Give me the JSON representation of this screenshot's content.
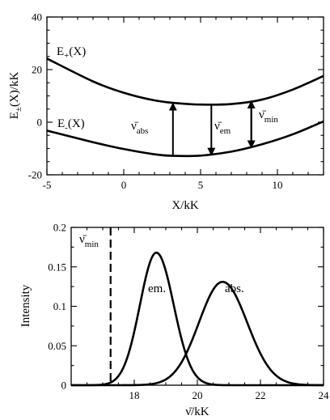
{
  "chart_data": [
    {
      "type": "line",
      "xlabel": "X/kK",
      "ylabel": "E±(X)/kK",
      "xlim": [
        -5,
        13
      ],
      "ylim": [
        -20,
        40
      ],
      "xticks": [
        -5,
        0,
        5,
        10
      ],
      "yticks": [
        -20,
        0,
        20,
        40
      ],
      "series": [
        {
          "name": "E+(X)",
          "x": [
            -5,
            -2,
            0,
            2,
            3.5,
            5,
            7,
            9,
            11,
            13
          ],
          "y": [
            24.2,
            15.5,
            11.2,
            8.3,
            7.2,
            6.7,
            6.9,
            8.6,
            12.4,
            17.6
          ]
        },
        {
          "name": "E-(X)",
          "x": [
            -5,
            -2,
            0,
            2,
            3.2,
            5,
            7,
            9,
            11,
            13
          ],
          "y": [
            -3.2,
            -7.6,
            -10.2,
            -12.2,
            -12.8,
            -12.7,
            -11.2,
            -8.4,
            -4.6,
            0.3
          ]
        }
      ],
      "arrows": [
        {
          "label": "ν̄",
          "sub": "abs",
          "x": 3.2,
          "from": -12.8,
          "to": 7.2
        },
        {
          "label": "ν̄",
          "sub": "em",
          "x": 5.7,
          "from": 6.7,
          "to": -12.5
        },
        {
          "label": "ν̄",
          "sub": "min",
          "x": 8.3,
          "from": 8.0,
          "to": -9.7
        }
      ]
    },
    {
      "type": "line",
      "xlabel": "ν̄/kK",
      "ylabel": "Intensity",
      "xlim": [
        16,
        24
      ],
      "ylim": [
        0,
        0.2
      ],
      "xticks": [
        18,
        20,
        22,
        24
      ],
      "yticks": [
        0,
        0.05,
        0.1,
        0.15,
        0.2
      ],
      "vline": {
        "x": 17.25,
        "label": "ν̄",
        "sub": "min"
      },
      "series": [
        {
          "name": "em.",
          "peak_x": 18.7,
          "peak_y": 0.168,
          "x": [
            17.5,
            18.0,
            18.7,
            19.4,
            20.0,
            20.5
          ],
          "y": [
            0.026,
            0.085,
            0.168,
            0.1,
            0.032,
            0.008
          ]
        },
        {
          "name": "abs.",
          "peak_x": 20.8,
          "peak_y": 0.131,
          "x": [
            18.6,
            19.5,
            20.8,
            22.0,
            23.0
          ],
          "y": [
            0.003,
            0.035,
            0.131,
            0.072,
            0.013
          ]
        }
      ]
    }
  ]
}
